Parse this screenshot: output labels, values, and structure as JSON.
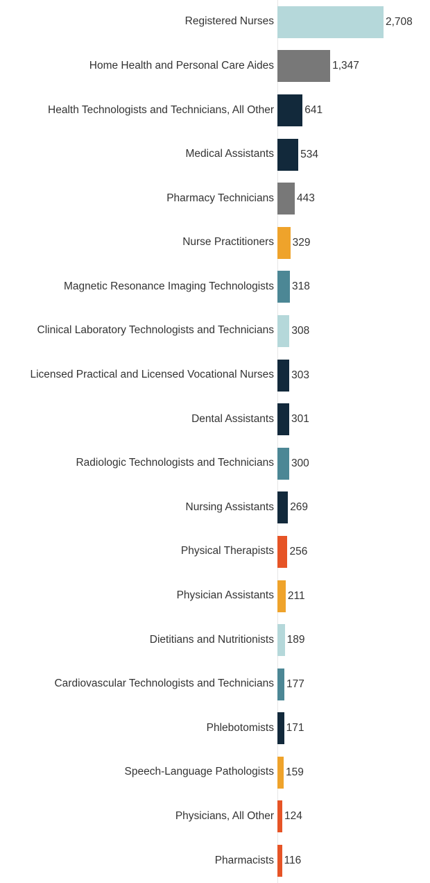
{
  "chart_data": {
    "type": "bar",
    "orientation": "horizontal",
    "title": "",
    "xlabel": "",
    "ylabel": "",
    "xlim": [
      0,
      2708
    ],
    "grid": false,
    "legend": "none",
    "categories": [
      "Registered Nurses",
      "Home Health and Personal Care Aides",
      "Health Technologists and Technicians, All Other",
      "Medical Assistants",
      "Pharmacy Technicians",
      "Nurse Practitioners",
      "Magnetic Resonance Imaging Technologists",
      "Clinical Laboratory Technologists and Technicians",
      "Licensed Practical and Licensed Vocational Nurses",
      "Dental Assistants",
      "Radiologic Technologists and Technicians",
      "Nursing Assistants",
      "Physical Therapists",
      "Physician Assistants",
      "Dietitians and Nutritionists",
      "Cardiovascular Technologists and Technicians",
      "Phlebotomists",
      "Speech-Language Pathologists",
      "Physicians, All Other",
      "Pharmacists"
    ],
    "values": [
      2708,
      1347,
      641,
      534,
      443,
      329,
      318,
      308,
      303,
      301,
      300,
      269,
      256,
      211,
      189,
      177,
      171,
      159,
      124,
      116
    ],
    "value_labels": [
      "2,708",
      "1,347",
      "641",
      "534",
      "443",
      "329",
      "318",
      "308",
      "303",
      "301",
      "300",
      "269",
      "256",
      "211",
      "189",
      "177",
      "171",
      "159",
      "124",
      "116"
    ],
    "bar_colors": [
      "#b5d8da",
      "#787878",
      "#12293b",
      "#12293b",
      "#787878",
      "#efa32b",
      "#4c8795",
      "#b5d8da",
      "#12293b",
      "#12293b",
      "#4c8795",
      "#12293b",
      "#e65426",
      "#efa32b",
      "#b5d8da",
      "#4c8795",
      "#12293b",
      "#efa32b",
      "#e65426",
      "#e65426"
    ]
  },
  "colors": {
    "background": "#ffffff",
    "text": "#333333",
    "axis_line": "#e6e6e6"
  }
}
